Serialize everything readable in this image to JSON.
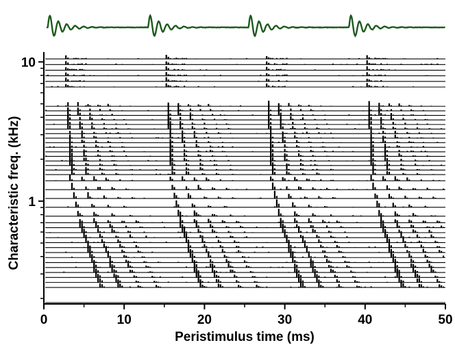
{
  "chart_data": {
    "type": "psth-stack",
    "title": "",
    "xlabel": "Peristimulus time (ms)",
    "ylabel": "Characteristic freq. (kHz)",
    "x_range": [
      0,
      50
    ],
    "x_ticks": [
      0,
      10,
      20,
      30,
      40,
      50
    ],
    "x_tick_labels": [
      "0",
      "10",
      "20",
      "30",
      "40",
      "50"
    ],
    "y_scale": "log",
    "y_range_khz": [
      0.2,
      11
    ],
    "y_tick_labels": [
      {
        "value": 10,
        "label": "10"
      },
      {
        "value": 1,
        "label": "1"
      }
    ],
    "y_minor_ticks": [
      9,
      8,
      7,
      6,
      5,
      4,
      3,
      2,
      0.9,
      0.8,
      0.7,
      0.6,
      0.5,
      0.4,
      0.3,
      0.2
    ],
    "stimulus": {
      "color": "#1e5a1e",
      "onset_times_ms": [
        0.5,
        13,
        25.5,
        38
      ],
      "period_ms": 12.5
    },
    "trace_groups": [
      {
        "cf_range_khz": [
          6.6,
          10.5
        ],
        "traces": 6,
        "onset_ms": 2.0,
        "delay_ms": 0.0,
        "type": "click"
      },
      {
        "cf_range_khz": [
          1.55,
          4.8
        ],
        "traces": 16,
        "onset_ms": 2.3,
        "delay_ms": 0.5,
        "type": "ringing"
      },
      {
        "cf_range_khz": [
          0.78,
          1.4
        ],
        "traces": 5,
        "onset_ms": 2.6,
        "delay_ms": 1.0,
        "type": "ringing"
      },
      {
        "cf_range_khz": [
          0.24,
          0.7
        ],
        "traces": 14,
        "onset_ms": 3.8,
        "delay_ms": 2.5,
        "type": "ringing"
      }
    ],
    "trace_color": "#000000",
    "grid": false,
    "legend": "none"
  }
}
